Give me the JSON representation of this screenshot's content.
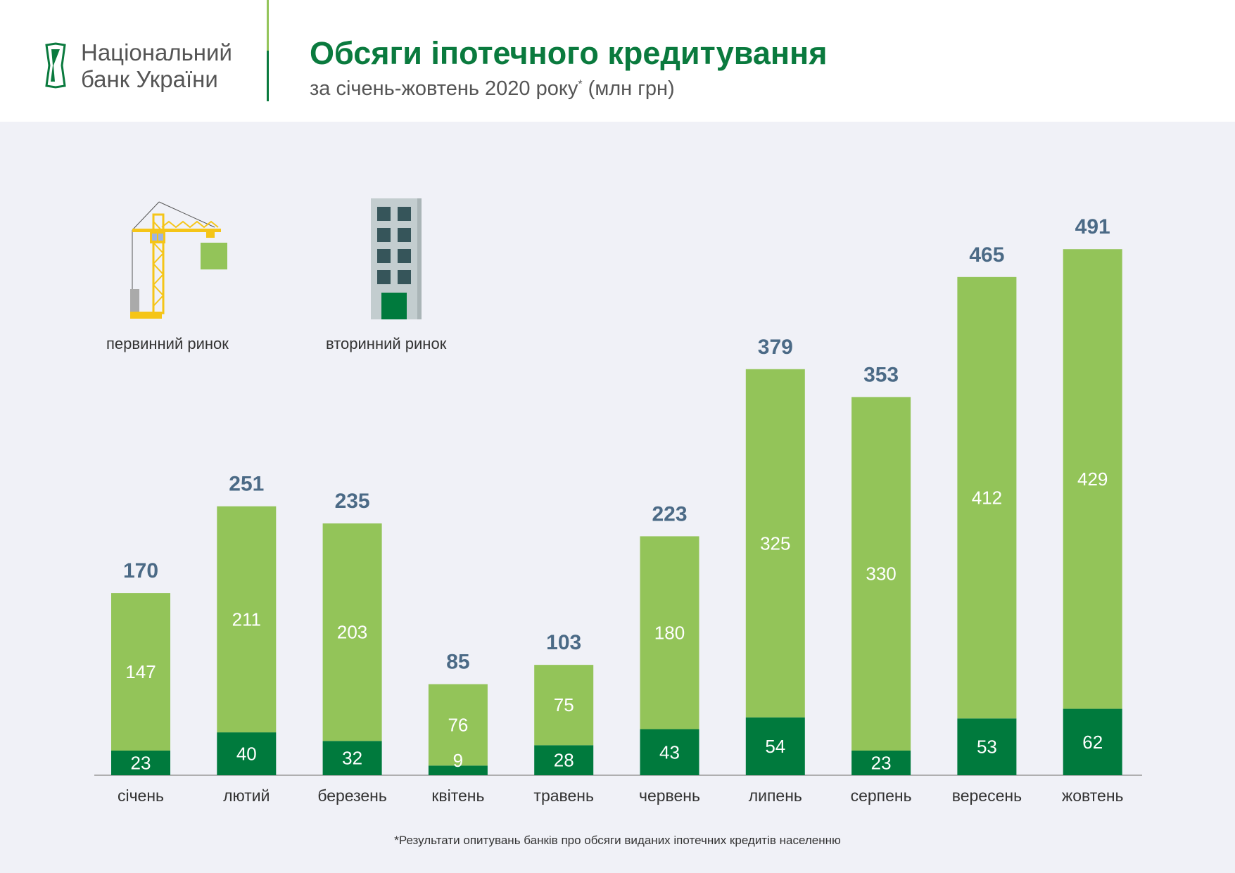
{
  "header": {
    "logo_text_line1": "Національний",
    "logo_text_line2": "банк України",
    "title": "Обсяги іпотечного кредитування",
    "subtitle": "за січень-жовтень 2020 року",
    "subtitle_mark": "*",
    "subtitle_unit": "(млн грн)"
  },
  "legend": {
    "primary": {
      "label": "первинний ринок",
      "icon": "crane-icon"
    },
    "secondary": {
      "label": "вторинний ринок",
      "icon": "building-icon"
    }
  },
  "colors": {
    "primary": "#93c459",
    "secondary": "#007a3d",
    "total_label": "#4b6a86",
    "brand": "#0a7a3e"
  },
  "chart_data": {
    "type": "bar",
    "stacked": true,
    "categories": [
      "січень",
      "лютий",
      "березень",
      "квітень",
      "травень",
      "червень",
      "липень",
      "серпень",
      "вересень",
      "жовтень"
    ],
    "series": [
      {
        "name": "вторинний ринок",
        "values": [
          23,
          40,
          32,
          9,
          28,
          43,
          54,
          23,
          53,
          62
        ]
      },
      {
        "name": "первинний ринок",
        "values": [
          147,
          211,
          203,
          76,
          75,
          180,
          325,
          330,
          412,
          429
        ]
      }
    ],
    "totals": [
      170,
      251,
      235,
      85,
      103,
      223,
      379,
      353,
      465,
      491
    ],
    "ylim": [
      0,
      491
    ],
    "grid": false,
    "axis_ticks": false
  },
  "footnote": "*Результати опитувань банків про обсяги виданих іпотечних кредитів населенню"
}
